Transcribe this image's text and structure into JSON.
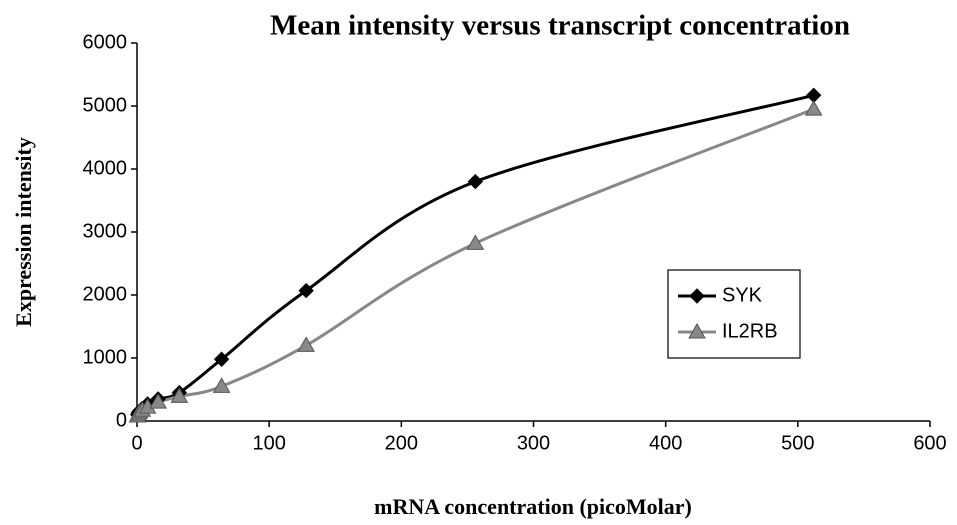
{
  "chart_data": {
    "type": "line",
    "title": "Mean intensity versus transcript concentration",
    "x_label": "mRNA concentration (picoMolar)",
    "y_label": "Expression intensity",
    "x": [
      0.5,
      1,
      2,
      4,
      8,
      16,
      32,
      64,
      128,
      256,
      512
    ],
    "series": [
      {
        "name": "SYK",
        "color": "#000000",
        "marker": "diamond",
        "values": [
          100,
          130,
          160,
          200,
          270,
          350,
          450,
          980,
          2070,
          3800,
          5170
        ]
      },
      {
        "name": "IL2RB",
        "color": "#888888",
        "marker": "triangle",
        "values": [
          80,
          110,
          140,
          170,
          220,
          300,
          390,
          550,
          1200,
          2820,
          4950
        ]
      }
    ],
    "xlim": [
      0,
      600
    ],
    "xticks": [
      0,
      100,
      200,
      300,
      400,
      500,
      600
    ],
    "ylim": [
      0,
      6000
    ],
    "yticks": [
      0,
      1000,
      2000,
      3000,
      4000,
      5000,
      6000
    ],
    "grid": false,
    "legend": "right",
    "smooth": true
  }
}
